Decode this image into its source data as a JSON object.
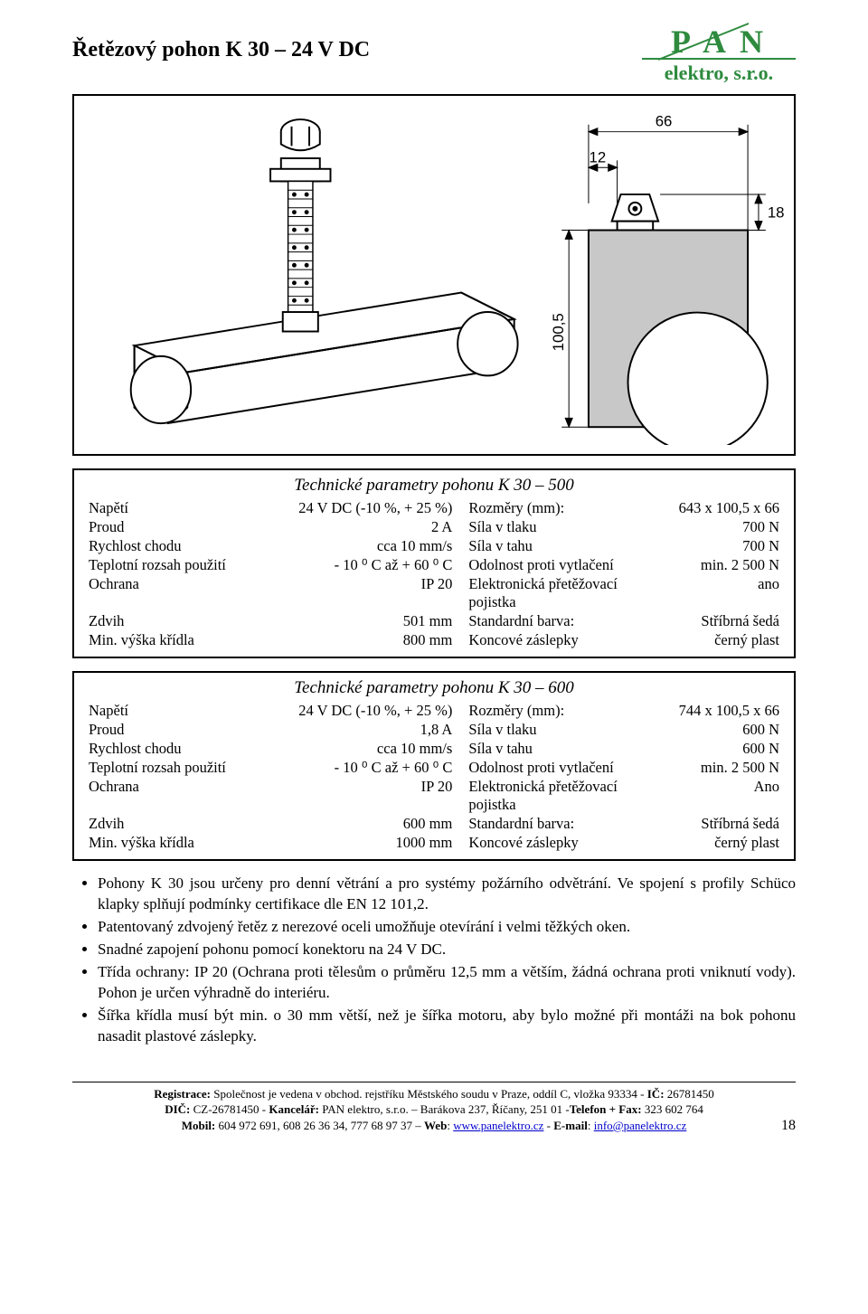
{
  "header": {
    "title": "Řetězový pohon K 30 – 24 V DC",
    "logo_main": "P A N",
    "logo_sub": "elektro, s.r.o."
  },
  "diagram": {
    "dim_66": "66",
    "dim_12": "12",
    "dim_18": "18",
    "dim_100_5": "100,5"
  },
  "table1": {
    "title": "Technické parametry pohonu K 30 – 500",
    "rows": [
      {
        "l": "Napětí",
        "v": "24 V DC (-10 %, + 25 %)",
        "r": "Rozměry (mm):",
        "rv": "643 x 100,5 x 66"
      },
      {
        "l": "Proud",
        "v": "2 A",
        "r": "Síla v tlaku",
        "rv": "700 N"
      },
      {
        "l": "Rychlost chodu",
        "v": "cca 10 mm/s",
        "r": "Síla v tahu",
        "rv": "700 N"
      },
      {
        "l": "Teplotní rozsah použití",
        "v": "- 10 ⁰ C až + 60 ⁰ C",
        "r": "Odolnost proti vytlačení",
        "rv": "min. 2 500 N"
      },
      {
        "l": "Ochrana",
        "v": "IP 20",
        "r": "Elektronická přetěžovací pojistka",
        "rv": "ano"
      },
      {
        "l": "Zdvih",
        "v": "501 mm",
        "r": "Standardní barva:",
        "rv": "Stříbrná šedá"
      },
      {
        "l": "Min. výška křídla",
        "v": "800 mm",
        "r": "Koncové záslepky",
        "rv": "černý plast"
      }
    ]
  },
  "table2": {
    "title": "Technické parametry pohonu K 30 – 600",
    "rows": [
      {
        "l": "Napětí",
        "v": "24 V DC (-10 %, + 25 %)",
        "r": "Rozměry (mm):",
        "rv": "744 x 100,5 x 66"
      },
      {
        "l": "Proud",
        "v": "1,8 A",
        "r": "Síla v tlaku",
        "rv": "600 N"
      },
      {
        "l": "Rychlost chodu",
        "v": "cca 10 mm/s",
        "r": "Síla v tahu",
        "rv": "600 N"
      },
      {
        "l": "Teplotní rozsah použití",
        "v": "- 10 ⁰ C až + 60 ⁰ C",
        "r": "Odolnost proti vytlačení",
        "rv": "min. 2 500 N"
      },
      {
        "l": "Ochrana",
        "v": "IP 20",
        "r": "Elektronická přetěžovací pojistka",
        "rv": "Ano"
      },
      {
        "l": "Zdvih",
        "v": "600 mm",
        "r": "Standardní barva:",
        "rv": "Stříbrná šedá"
      },
      {
        "l": "Min. výška křídla",
        "v": "1000 mm",
        "r": "Koncové záslepky",
        "rv": "černý plast"
      }
    ]
  },
  "bullets": [
    "Pohony K 30 jsou určeny pro denní větrání a pro systémy požárního odvětrání. Ve spojení s profily Schüco klapky splňují podmínky certifikace dle EN 12 101,2.",
    "Patentovaný zdvojený řetěz z nerezové oceli umožňuje otevírání i velmi těžkých oken.",
    "Snadné zapojení pohonu pomocí konektoru na 24 V DC.",
    "Třída ochrany: IP 20 (Ochrana proti tělesům o průměru 12,5 mm a větším, žádná ochrana proti vniknutí vody). Pohon je určen výhradně do interiéru.",
    "Šířka křídla musí být min. o 30 mm větší, než je šířka motoru, aby bylo možné při montáži na bok pohonu nasadit plastové záslepky."
  ],
  "footer": {
    "line1_a": "Registrace:",
    "line1_b": " Společnost je vedena v obchod. rejstříku Městského soudu v Praze, oddíl C, vložka 93334 - ",
    "line1_c": "IČ:",
    "line1_d": " 26781450",
    "line2_a": "DIČ:",
    "line2_b": " CZ-26781450 - ",
    "line2_c": "Kancelář:",
    "line2_d": " PAN elektro, s.r.o. – Barákova 237, Říčany, 251 01 -",
    "line2_e": "Telefon + Fax:",
    "line2_f": " 323 602 764",
    "line3_a": "Mobil:",
    "line3_b": " 604 972 691, 608 26 36 34, 777 68 97 37 – ",
    "line3_c": "Web",
    "line3_d": ": ",
    "line3_link1": "www.panelektro.cz",
    "line3_e": " - ",
    "line3_f": "E-mail",
    "line3_g": ": ",
    "line3_link2": "info@panelektro.cz",
    "pagenum": "18"
  }
}
